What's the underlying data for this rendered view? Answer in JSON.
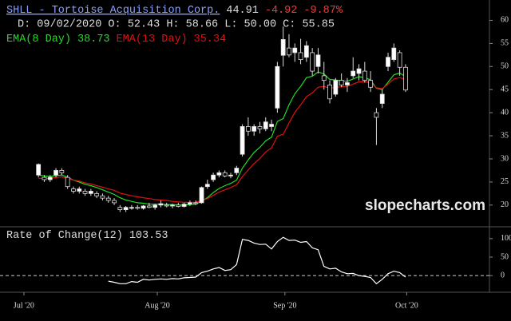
{
  "header": {
    "symbol": "SHLL - Tortoise Acquisition Corp.",
    "last": "44.91",
    "change": "-4.92",
    "change_pct": "-9.87%",
    "ohlc": "D: 09/02/2020 O: 52.43 H: 58.66 L: 50.00 C: 55.85",
    "watermark": "slopecharts.com"
  },
  "chart_data": [
    {
      "type": "candlestick",
      "categories": [
        null,
        null,
        null,
        null,
        null,
        null,
        null,
        null,
        null,
        null,
        null,
        null,
        null,
        null,
        null,
        null,
        null,
        null,
        null,
        null,
        null,
        null,
        null,
        null,
        null,
        null,
        null,
        null,
        null,
        null,
        null,
        null,
        null,
        null,
        null,
        null,
        null,
        null,
        null,
        null,
        null,
        null,
        null,
        null,
        null,
        null,
        null,
        null,
        null,
        null,
        null,
        null,
        null,
        null,
        null,
        null,
        null,
        null,
        null,
        null,
        null,
        null,
        null,
        null
      ],
      "open": [
        26.5,
        26,
        25.5,
        26.5,
        27.5,
        26,
        23.5,
        23,
        23,
        22.5,
        22.5,
        22,
        21.5,
        21,
        19.5,
        19,
        19.3,
        19.5,
        19.3,
        19.8,
        19.5,
        20,
        20,
        19.8,
        20,
        19.7,
        20.2,
        20.5,
        20.5,
        24,
        25.5,
        26.5,
        27,
        26.3,
        27,
        31,
        37,
        36,
        37,
        36.5,
        37,
        41,
        52.43,
        54,
        53,
        53,
        52,
        53,
        50,
        48,
        46,
        44,
        47,
        46,
        48,
        48.5,
        49,
        47,
        40,
        42,
        50,
        51.5,
        53,
        49.83
      ],
      "high": [
        29,
        26.5,
        26.5,
        28,
        28,
        26.5,
        24,
        24,
        23.5,
        23.5,
        23,
        22.5,
        22,
        21.5,
        20,
        19.8,
        20,
        20,
        20,
        20.5,
        20.3,
        21,
        20.5,
        20.3,
        20.5,
        20.5,
        21,
        21,
        24,
        25.5,
        27,
        27.5,
        27.5,
        27,
        28.5,
        37.5,
        39,
        37.5,
        38,
        39,
        38.5,
        51,
        58.66,
        57,
        55,
        56,
        55.5,
        54,
        54,
        51,
        47,
        47.5,
        48.5,
        47.5,
        52,
        50.5,
        51,
        49,
        41,
        45,
        53,
        55,
        53.5,
        50.5
      ],
      "low": [
        26,
        25,
        25,
        26,
        26.5,
        23.5,
        22.5,
        22.5,
        22,
        22,
        21.5,
        21,
        20.5,
        20,
        18.5,
        18.5,
        19,
        19,
        19,
        19.3,
        19,
        19.5,
        19.5,
        19.3,
        19.5,
        19.5,
        19.8,
        20,
        20.3,
        23.5,
        25,
        26,
        26,
        25.8,
        26.5,
        30.5,
        35,
        35,
        35.5,
        36,
        36,
        40,
        50,
        52,
        51,
        50.5,
        51,
        48,
        48.5,
        45,
        42,
        43.5,
        45.5,
        44.5,
        47.5,
        47,
        46.5,
        44.5,
        33,
        41,
        49,
        51,
        48,
        44.5
      ],
      "close": [
        28.8,
        25.5,
        26,
        27.5,
        27,
        24,
        23,
        23.5,
        22.5,
        23,
        22,
        21.5,
        21,
        20.5,
        19,
        19.5,
        19.5,
        19.3,
        19.8,
        19.5,
        20,
        20.3,
        19.8,
        20,
        19.7,
        20.2,
        20.5,
        20.3,
        23.8,
        24.5,
        26.5,
        27,
        26.3,
        26.5,
        28,
        37,
        36,
        37,
        36.5,
        38,
        37.5,
        50,
        55.85,
        52.5,
        54,
        51.5,
        54.5,
        49,
        52.5,
        47,
        43,
        47,
        46,
        46.5,
        49,
        49.5,
        47,
        45.5,
        39,
        44,
        52,
        54,
        49.83,
        44.91
      ],
      "up_color": "#ffffff",
      "down_color": "#000000",
      "series": [
        {
          "name": "EMA(8 Day)",
          "value_label": "38.73",
          "color": "#22dd22",
          "values": [
            26.5,
            26.3,
            26.2,
            26.4,
            26.5,
            26.0,
            25.4,
            25.0,
            24.5,
            24.2,
            23.8,
            23.3,
            22.8,
            22.3,
            21.6,
            21.1,
            20.8,
            20.5,
            20.4,
            20.2,
            20.2,
            20.2,
            20.1,
            20.1,
            20.0,
            20.0,
            20.1,
            20.2,
            20.9,
            21.6,
            22.7,
            23.6,
            24.2,
            24.7,
            25.4,
            28.0,
            29.8,
            31.4,
            32.5,
            33.9,
            34.7,
            38.1,
            38.73,
            41.7,
            44.1,
            45.7,
            47.6,
            47.9,
            48.8,
            48.4,
            47.2,
            47.1,
            46.9,
            46.8,
            47.3,
            47.8,
            47.6,
            47.1,
            45.3,
            45.0,
            46.6,
            48.2,
            48.6,
            47.8
          ]
        },
        {
          "name": "EMA(13 Day)",
          "value_label": "35.34",
          "color": "#dd1111",
          "values": [
            25.8,
            25.8,
            25.8,
            26.0,
            26.1,
            25.8,
            25.4,
            25.2,
            24.8,
            24.6,
            24.2,
            23.9,
            23.5,
            23.2,
            22.6,
            22.3,
            22.0,
            21.8,
            21.6,
            21.4,
            21.2,
            21.1,
            21.0,
            20.8,
            20.7,
            20.6,
            20.6,
            20.6,
            21.0,
            21.4,
            22.1,
            22.8,
            23.3,
            23.8,
            24.4,
            26.2,
            27.6,
            29.0,
            30.1,
            31.5,
            32.4,
            34.9,
            35.34,
            37.8,
            40.1,
            41.7,
            43.5,
            44.3,
            45.5,
            45.7,
            45.3,
            45.5,
            45.6,
            45.7,
            46.2,
            46.7,
            46.7,
            46.5,
            45.4,
            45.2,
            46.2,
            47.3,
            47.6,
            47.2
          ]
        }
      ],
      "xlim": [
        -6.6,
        77.4
      ],
      "ylim": [
        15.3,
        64.4
      ],
      "yticks": [
        20,
        25,
        30,
        35,
        40,
        45,
        50,
        55,
        60
      ]
    },
    {
      "type": "line",
      "series": [
        {
          "name": "Rate of Change(12)",
          "value_label": "103.53",
          "color": "#ffffff",
          "values": [
            null,
            null,
            null,
            null,
            null,
            null,
            null,
            null,
            null,
            null,
            null,
            null,
            -15,
            -18,
            -22,
            -22,
            -16,
            -18,
            -10,
            -12,
            -10,
            -9,
            -10,
            -8,
            -9,
            -6,
            -5,
            -4,
            8,
            12,
            18,
            22,
            14,
            16,
            30,
            98,
            95,
            88,
            84,
            85,
            72,
            92,
            103.53,
            95,
            96,
            90,
            92,
            75,
            70,
            25,
            18,
            20,
            10,
            5,
            6,
            0,
            -2,
            -5,
            -22,
            -10,
            5,
            12,
            8,
            -4
          ]
        }
      ],
      "xlim": [
        -6.6,
        77.4
      ],
      "ylim": [
        -45,
        132
      ],
      "yticks": [
        0,
        50,
        100
      ],
      "zero_line": true,
      "xticks": [
        {
          "value": -2.5,
          "label": "Jul '20"
        },
        {
          "value": 20.4,
          "label": "Aug '20"
        },
        {
          "value": 42.3,
          "label": "Sep '20"
        },
        {
          "value": 63.2,
          "label": "Oct '20"
        }
      ]
    }
  ]
}
